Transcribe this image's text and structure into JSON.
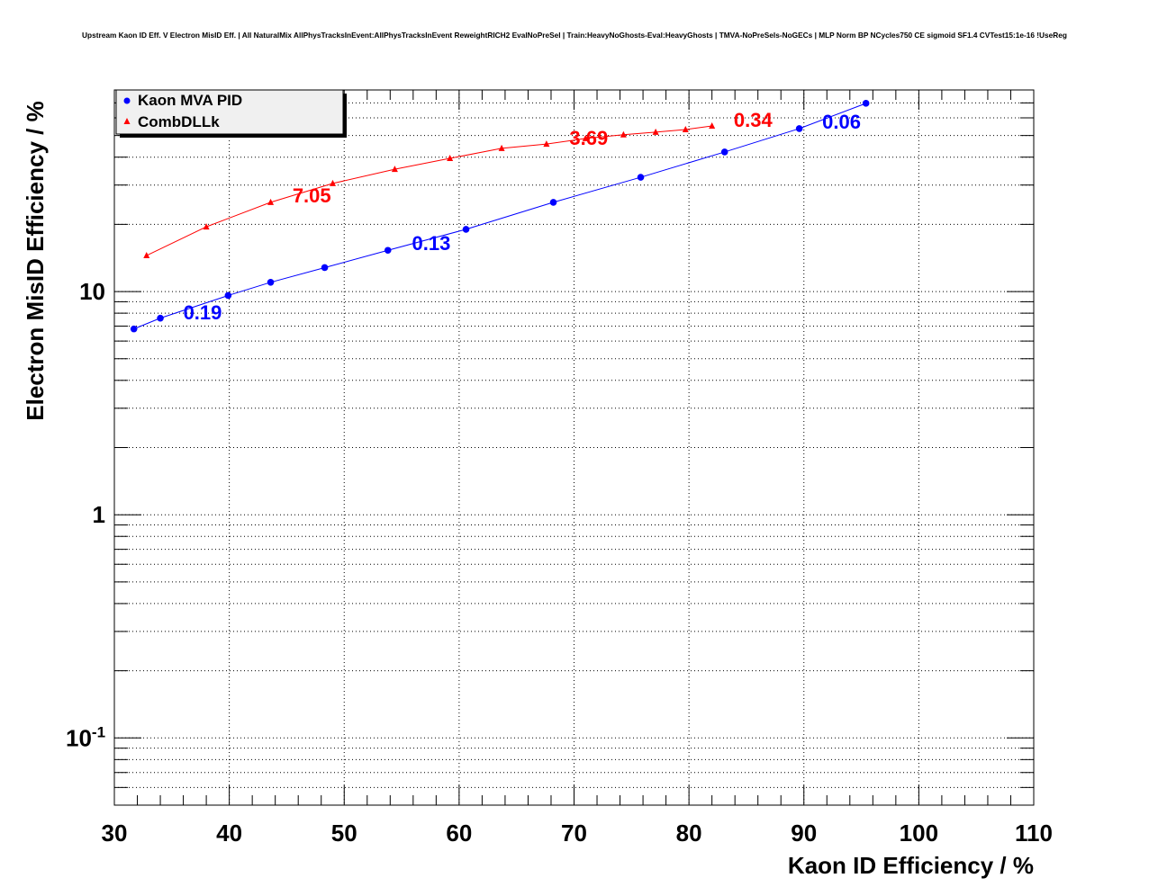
{
  "chart_data": {
    "type": "line",
    "title": "Upstream Kaon ID Eff. V Electron MisID Eff. | All NaturalMix AllPhysTracksInEvent:AllPhysTracksInEvent ReweightRICH2 EvalNoPreSel | Train:HeavyNoGhosts-Eval:HeavyGhosts | TMVA-NoPreSels-NoGECs | MLP Norm BP NCycles750 CE sigmoid SF1.4 CVTest15:1e-16 !UseReg",
    "xlabel": "Kaon ID Efficiency / %",
    "ylabel": "Electron MisID Efficiency / %",
    "xlim": [
      30,
      110
    ],
    "ylim": [
      0.05,
      80
    ],
    "yscale": "log",
    "grid": true,
    "x_ticks": [
      "30",
      "40",
      "50",
      "60",
      "70",
      "80",
      "90",
      "100",
      "110"
    ],
    "y_ticks": [
      {
        "value": 10,
        "base": "10",
        "exp": ""
      },
      {
        "value": 1,
        "base": "1",
        "exp": ""
      },
      {
        "value": 0.1,
        "base": "10",
        "exp": "-1"
      }
    ],
    "legend_position": "top-left",
    "series": [
      {
        "name": "Kaon MVA PID",
        "color": "#0000ff",
        "marker": "circle",
        "x": [
          31.7,
          34.0,
          39.9,
          43.6,
          48.3,
          53.8,
          60.6,
          68.2,
          75.8,
          83.1,
          89.6,
          95.4
        ],
        "y": [
          6.8,
          7.6,
          9.6,
          11.0,
          12.8,
          15.3,
          19.0,
          25.1,
          32.5,
          42.2,
          53.7,
          69.7
        ],
        "annotations": [
          {
            "text": "0.19",
            "x": 36.0,
            "y": 7.5
          },
          {
            "text": "0.13",
            "x": 55.9,
            "y": 15.3
          },
          {
            "text": "0.06",
            "x": 91.6,
            "y": 53.7
          }
        ]
      },
      {
        "name": "CombDLLk",
        "color": "#ff0000",
        "marker": "triangle",
        "x": [
          32.8,
          38.0,
          43.6,
          49.0,
          54.4,
          59.2,
          63.7,
          67.6,
          71.0,
          74.3,
          77.1,
          79.7,
          82.0
        ],
        "y": [
          14.5,
          19.5,
          25.1,
          30.5,
          35.3,
          39.5,
          43.8,
          45.8,
          48.5,
          50.4,
          51.8,
          53.2,
          55.2
        ],
        "annotations": [
          {
            "text": "7.05",
            "x": 45.5,
            "y": 25.1
          },
          {
            "text": "3.69",
            "x": 69.6,
            "y": 45.5
          },
          {
            "text": "0.34",
            "x": 83.9,
            "y": 54.8
          }
        ]
      }
    ]
  }
}
